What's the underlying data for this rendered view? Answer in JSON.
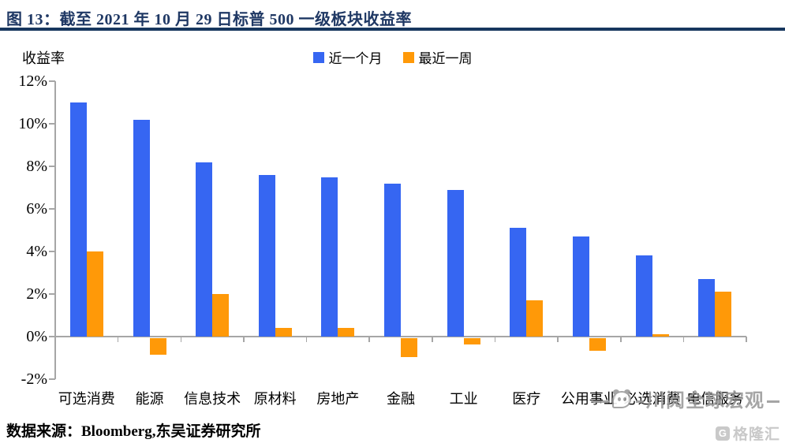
{
  "header": {
    "title": "图 13：截至 2021 年 10 月 29 日标普 500 一级板块收益率"
  },
  "chart": {
    "ylabel": "收益率"
  },
  "chart_data": {
    "type": "bar",
    "title": "截至 2021 年 10 月 29 日标普 500 一级板块收益率",
    "categories": [
      "可选消费",
      "能源",
      "信息技术",
      "原材料",
      "房地产",
      "金融",
      "工业",
      "医疗",
      "公用事业",
      "必选消费",
      "电信服务"
    ],
    "series": [
      {
        "name": "近一个月",
        "color": "#3666F2",
        "values": [
          11.0,
          10.2,
          8.2,
          7.6,
          7.5,
          7.2,
          6.9,
          5.1,
          4.7,
          3.8,
          2.7
        ]
      },
      {
        "name": "最近一周",
        "color": "#FF9908",
        "values": [
          4.0,
          -0.8,
          2.0,
          0.4,
          0.4,
          -0.9,
          -0.3,
          1.7,
          -0.6,
          0.1,
          2.1
        ]
      }
    ],
    "xlabel": "",
    "ylabel": "收益率",
    "ylim": [
      -2,
      12
    ],
    "ytick_step": 2,
    "ytick_suffix": "%",
    "grid": false,
    "legend_position": "top-center",
    "axis_color": "#A6A6A6"
  },
  "footer": {
    "source": "数据来源：Bloomberg,东吴证券研究所"
  },
  "watermark": {
    "text": "川阅全球宏观"
  },
  "logo": {
    "icon_letter": "G",
    "text": "格隆汇"
  }
}
